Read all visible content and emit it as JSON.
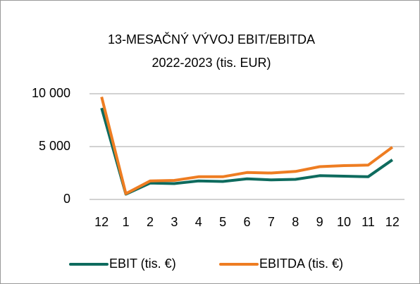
{
  "chart_data": {
    "type": "line",
    "title": [
      "13-MESAČNÝ VÝVOJ EBIT/EBITDA",
      "2022-2023 (tis. EUR)"
    ],
    "categories": [
      "12",
      "1",
      "2",
      "3",
      "4",
      "5",
      "6",
      "7",
      "8",
      "9",
      "10",
      "11",
      "12"
    ],
    "series": [
      {
        "name": "EBIT (tis. €)",
        "color": "#0e6b5e",
        "values": [
          8650,
          500,
          1550,
          1500,
          1750,
          1700,
          1950,
          1850,
          1900,
          2250,
          2200,
          2150,
          3750
        ]
      },
      {
        "name": "EBITDA (tis. €)",
        "color": "#ee7d22",
        "values": [
          9700,
          550,
          1750,
          1800,
          2150,
          2150,
          2550,
          2500,
          2650,
          3100,
          3200,
          3250,
          4950
        ]
      }
    ],
    "ylim": [
      0,
      10000
    ],
    "yticks": [
      {
        "value": 0,
        "label": "0"
      },
      {
        "value": 5000,
        "label": "5 000"
      },
      {
        "value": 10000,
        "label": "10 000"
      }
    ],
    "grid": true,
    "legend": "bottom"
  }
}
